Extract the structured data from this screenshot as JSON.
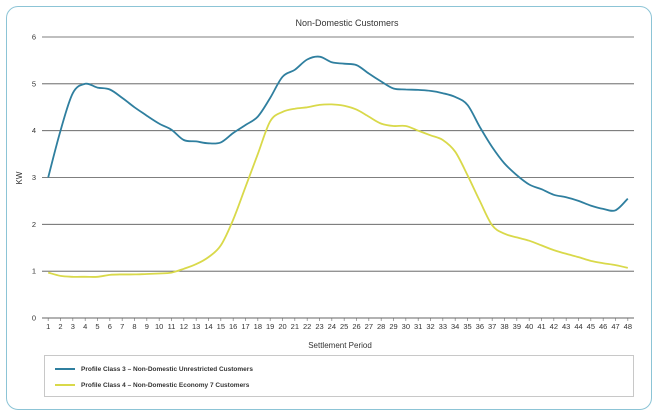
{
  "chart_data": {
    "type": "line",
    "title": "Non-Domestic Customers",
    "xlabel": "Settlement Period",
    "ylabel": "KW",
    "ylim": [
      0,
      6
    ],
    "yticks": [
      0,
      1,
      2,
      3,
      4,
      5,
      6
    ],
    "grid": "horizontal",
    "legend_position": "bottom",
    "categories": [
      "1",
      "2",
      "3",
      "4",
      "5",
      "6",
      "7",
      "8",
      "9",
      "10",
      "11",
      "12",
      "13",
      "14",
      "15",
      "16",
      "17",
      "18",
      "19",
      "20",
      "21",
      "22",
      "23",
      "24",
      "25",
      "26",
      "27",
      "28",
      "29",
      "30",
      "31",
      "32",
      "33",
      "34",
      "35",
      "36",
      "37",
      "38",
      "39",
      "40",
      "41",
      "42",
      "43",
      "44",
      "45",
      "46",
      "47",
      "48"
    ],
    "series": [
      {
        "name": "Profile Class 3 – Non-Domestic Unrestricted Customers",
        "color": "#2f7f9f",
        "values": [
          3.0,
          4.0,
          4.8,
          5.0,
          4.92,
          4.88,
          4.7,
          4.5,
          4.32,
          4.15,
          4.02,
          3.8,
          3.77,
          3.73,
          3.75,
          3.95,
          4.12,
          4.3,
          4.7,
          5.15,
          5.3,
          5.52,
          5.58,
          5.46,
          5.43,
          5.4,
          5.22,
          5.05,
          4.9,
          4.88,
          4.87,
          4.85,
          4.8,
          4.72,
          4.55,
          4.08,
          3.65,
          3.3,
          3.05,
          2.85,
          2.75,
          2.63,
          2.58,
          2.5,
          2.4,
          2.33,
          2.3,
          2.55
        ]
      },
      {
        "name": "Profile Class 4 – Non-Domestic Economy 7 Customers",
        "color": "#d9d94a",
        "values": [
          0.97,
          0.9,
          0.88,
          0.88,
          0.88,
          0.92,
          0.93,
          0.93,
          0.94,
          0.95,
          0.97,
          1.05,
          1.15,
          1.3,
          1.55,
          2.1,
          2.8,
          3.5,
          4.2,
          4.4,
          4.47,
          4.5,
          4.55,
          4.56,
          4.53,
          4.45,
          4.3,
          4.15,
          4.1,
          4.1,
          4.0,
          3.9,
          3.8,
          3.55,
          3.05,
          2.5,
          1.98,
          1.8,
          1.72,
          1.65,
          1.55,
          1.45,
          1.37,
          1.3,
          1.22,
          1.17,
          1.13,
          1.07
        ]
      }
    ]
  }
}
